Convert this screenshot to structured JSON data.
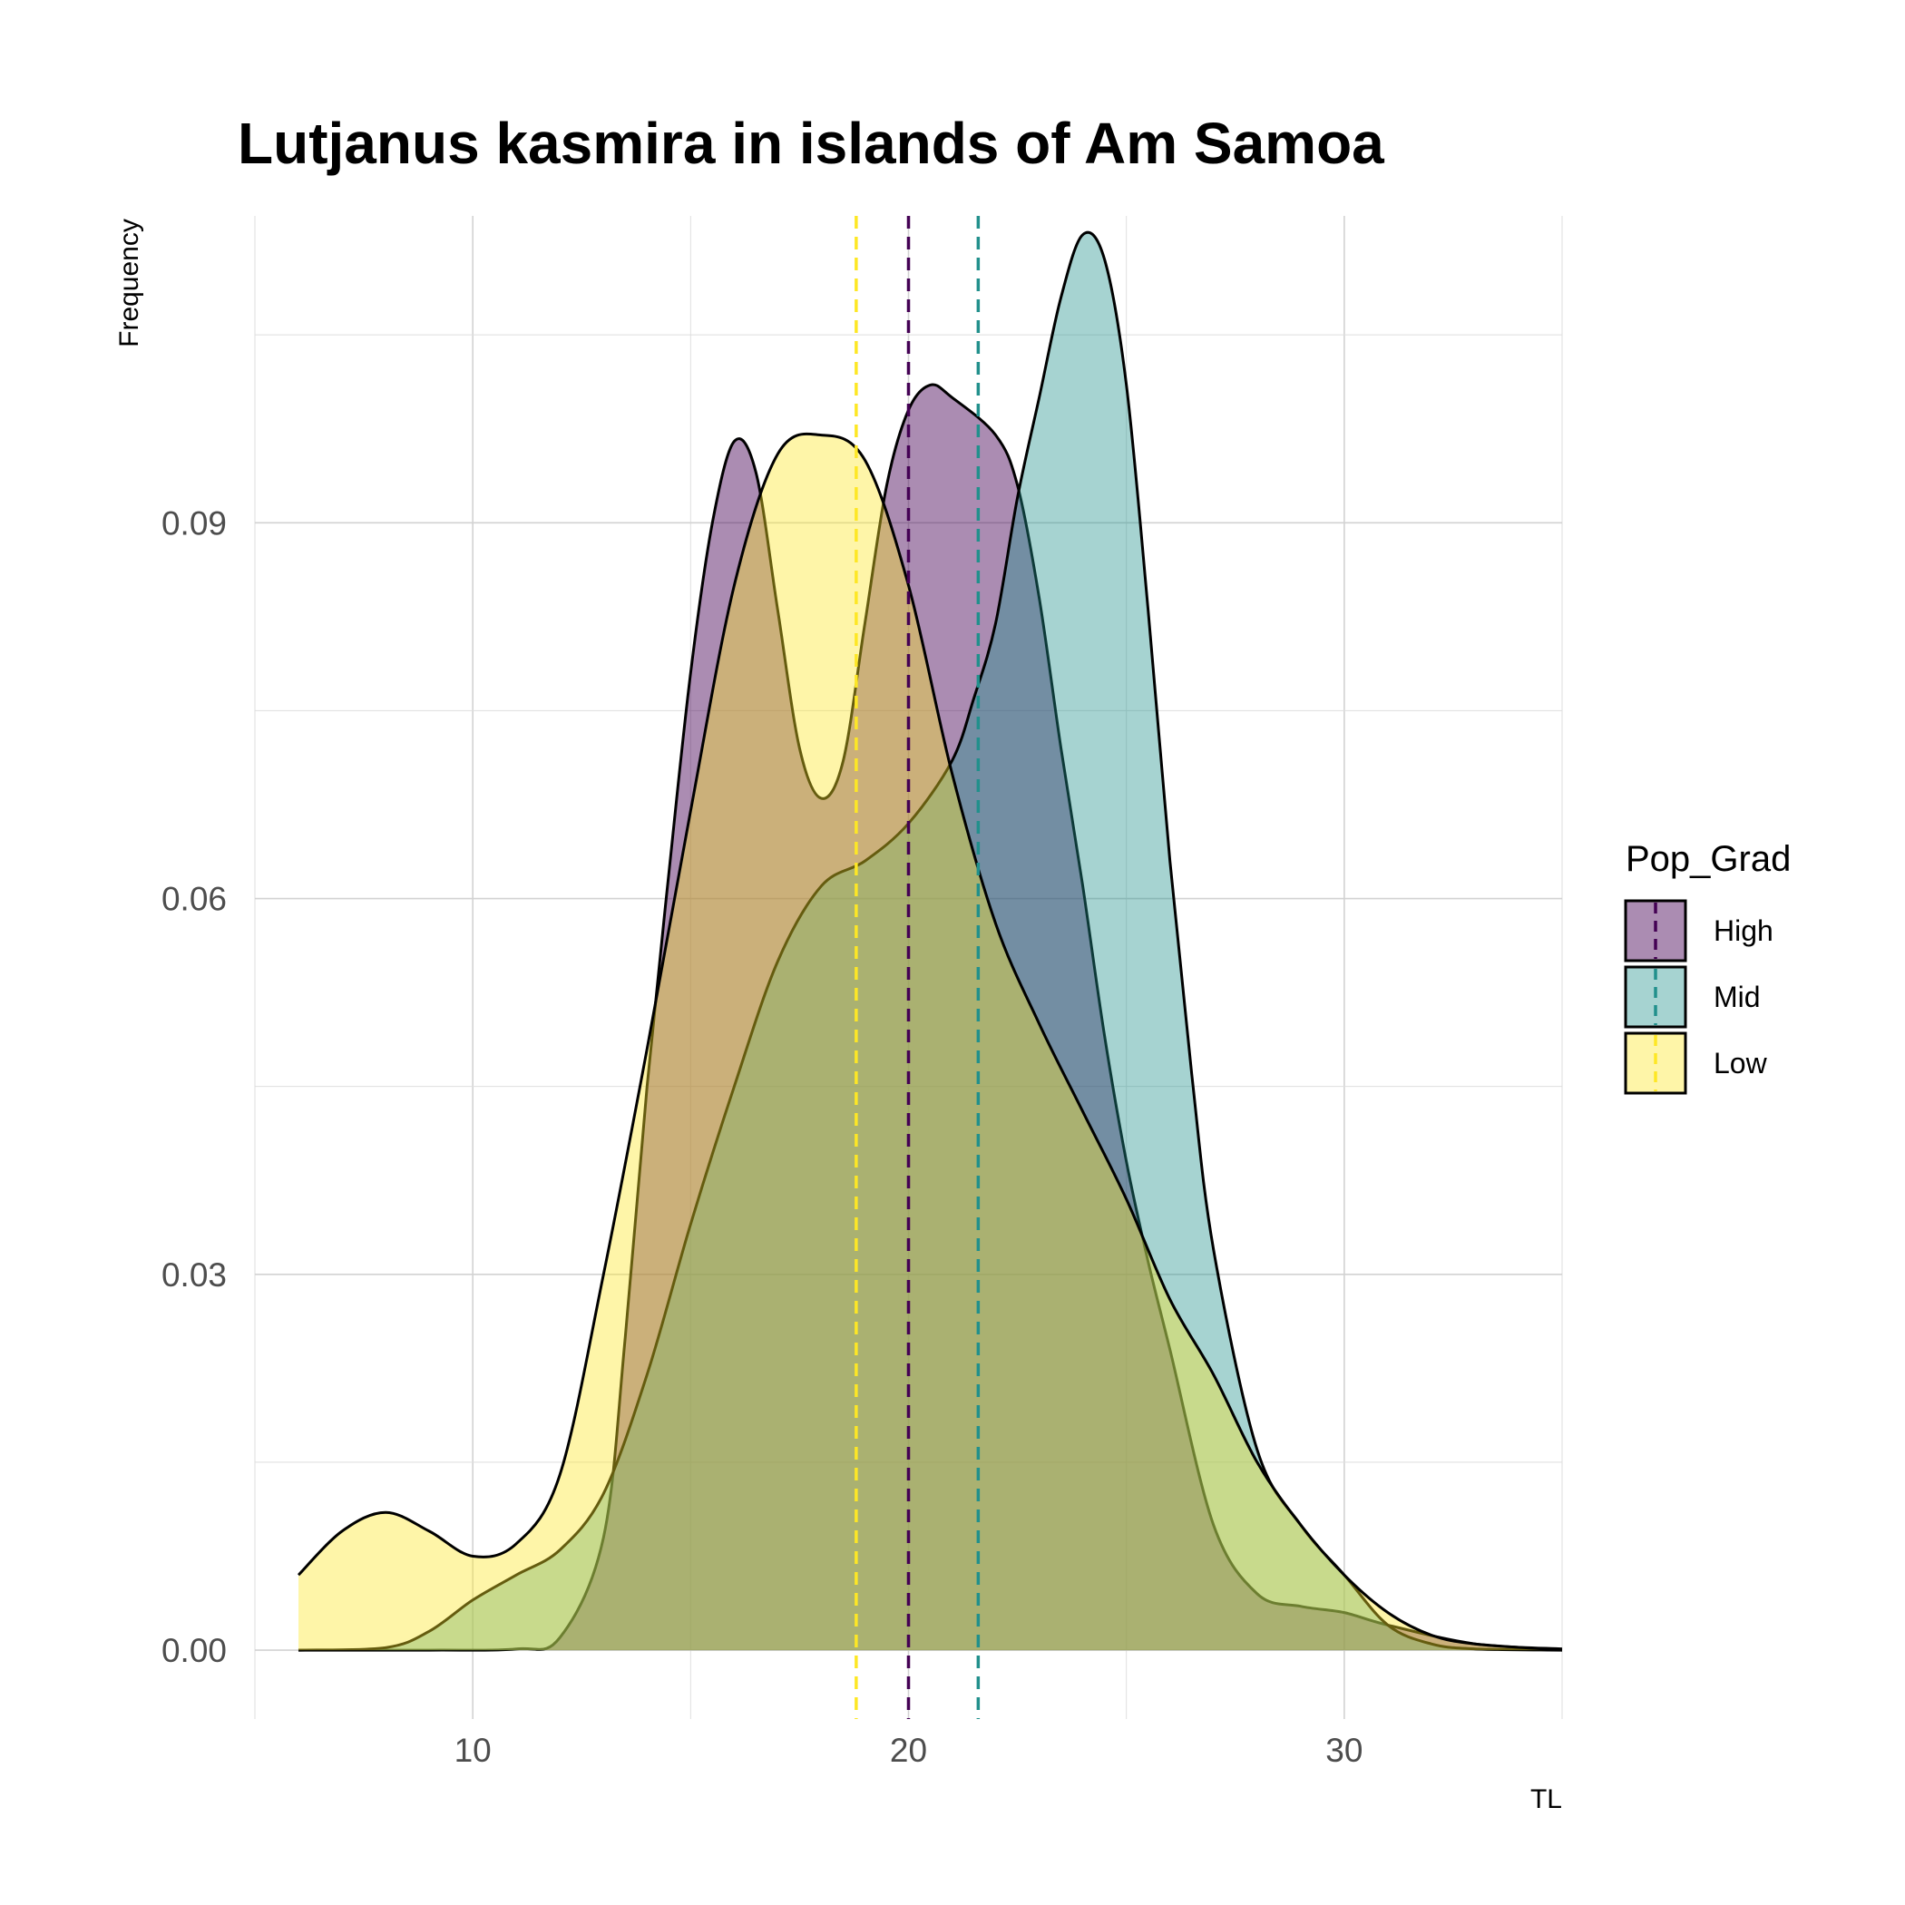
{
  "chart_data": {
    "type": "area",
    "title": "Lutjanus kasmira in islands of Am Samoa",
    "xlabel": "TL",
    "ylabel": "Frequency",
    "xlim": [
      5,
      35
    ],
    "ylim": [
      -0.0055,
      0.1145
    ],
    "x_ticks": [
      10,
      20,
      30
    ],
    "x_tick_labels": [
      "10",
      "20",
      "30"
    ],
    "y_ticks": [
      0.0,
      0.03,
      0.06,
      0.09
    ],
    "y_tick_labels": [
      "0.00",
      "0.03",
      "0.06",
      "0.09"
    ],
    "grid": true,
    "legend": {
      "title": "Pop_Grad",
      "position": "right"
    },
    "series": [
      {
        "name": "High",
        "color": "#440154",
        "fill_opacity": 0.45,
        "mean": 20.0,
        "points": [
          [
            6,
            0
          ],
          [
            9,
            0
          ],
          [
            11,
            0.0001
          ],
          [
            12,
            0.001
          ],
          [
            13,
            0.009
          ],
          [
            13.5,
            0.025
          ],
          [
            14,
            0.045
          ],
          [
            14.5,
            0.062
          ],
          [
            15,
            0.078
          ],
          [
            15.5,
            0.09
          ],
          [
            16,
            0.0965
          ],
          [
            16.5,
            0.094
          ],
          [
            17,
            0.083
          ],
          [
            17.5,
            0.072
          ],
          [
            18,
            0.068
          ],
          [
            18.5,
            0.071
          ],
          [
            19,
            0.082
          ],
          [
            19.5,
            0.093
          ],
          [
            20,
            0.099
          ],
          [
            20.5,
            0.101
          ],
          [
            21,
            0.1
          ],
          [
            22,
            0.097
          ],
          [
            22.5,
            0.093
          ],
          [
            23,
            0.084
          ],
          [
            23.5,
            0.072
          ],
          [
            24,
            0.061
          ],
          [
            24.5,
            0.049
          ],
          [
            25,
            0.039
          ],
          [
            25.5,
            0.031
          ],
          [
            26,
            0.024
          ],
          [
            27,
            0.01
          ],
          [
            28,
            0.0045
          ],
          [
            29,
            0.0035
          ],
          [
            30,
            0.003
          ],
          [
            31,
            0.002
          ],
          [
            33,
            0.0005
          ],
          [
            35,
            0.0001
          ]
        ]
      },
      {
        "name": "Mid",
        "color": "#21908C",
        "fill_opacity": 0.4,
        "mean": 21.6,
        "points": [
          [
            6,
            0
          ],
          [
            8,
            0.0002
          ],
          [
            9,
            0.0015
          ],
          [
            10,
            0.004
          ],
          [
            11,
            0.006
          ],
          [
            12,
            0.008
          ],
          [
            13,
            0.0125
          ],
          [
            14,
            0.022
          ],
          [
            15,
            0.034
          ],
          [
            16,
            0.045
          ],
          [
            17,
            0.055
          ],
          [
            18,
            0.061
          ],
          [
            19,
            0.063
          ],
          [
            20,
            0.066
          ],
          [
            21,
            0.071
          ],
          [
            21.5,
            0.076
          ],
          [
            22,
            0.082
          ],
          [
            22.5,
            0.092
          ],
          [
            23,
            0.1
          ],
          [
            23.5,
            0.108
          ],
          [
            24,
            0.113
          ],
          [
            24.5,
            0.111
          ],
          [
            25,
            0.101
          ],
          [
            25.5,
            0.083
          ],
          [
            26,
            0.063
          ],
          [
            26.5,
            0.046
          ],
          [
            27,
            0.032
          ],
          [
            28,
            0.016
          ],
          [
            29,
            0.01
          ],
          [
            30,
            0.006
          ],
          [
            31,
            0.002
          ],
          [
            32,
            0.0005
          ],
          [
            33,
            0.0001
          ],
          [
            35,
            0
          ]
        ]
      },
      {
        "name": "Low",
        "color": "#FDE725",
        "fill_opacity": 0.4,
        "mean": 18.8,
        "points": [
          [
            6,
            0.006
          ],
          [
            7,
            0.0095
          ],
          [
            8,
            0.011
          ],
          [
            9,
            0.0095
          ],
          [
            10,
            0.0075
          ],
          [
            11,
            0.0085
          ],
          [
            12,
            0.014
          ],
          [
            13,
            0.03
          ],
          [
            14,
            0.048
          ],
          [
            15,
            0.067
          ],
          [
            16,
            0.085
          ],
          [
            17,
            0.0955
          ],
          [
            18,
            0.097
          ],
          [
            19,
            0.095
          ],
          [
            20,
            0.085
          ],
          [
            21,
            0.07
          ],
          [
            22,
            0.058
          ],
          [
            23,
            0.05
          ],
          [
            24,
            0.043
          ],
          [
            25,
            0.036
          ],
          [
            26,
            0.028
          ],
          [
            27,
            0.022
          ],
          [
            28,
            0.015
          ],
          [
            29,
            0.01
          ],
          [
            30,
            0.006
          ],
          [
            31,
            0.003
          ],
          [
            32,
            0.0012
          ],
          [
            33,
            0.0005
          ],
          [
            35,
            0
          ]
        ]
      }
    ]
  }
}
